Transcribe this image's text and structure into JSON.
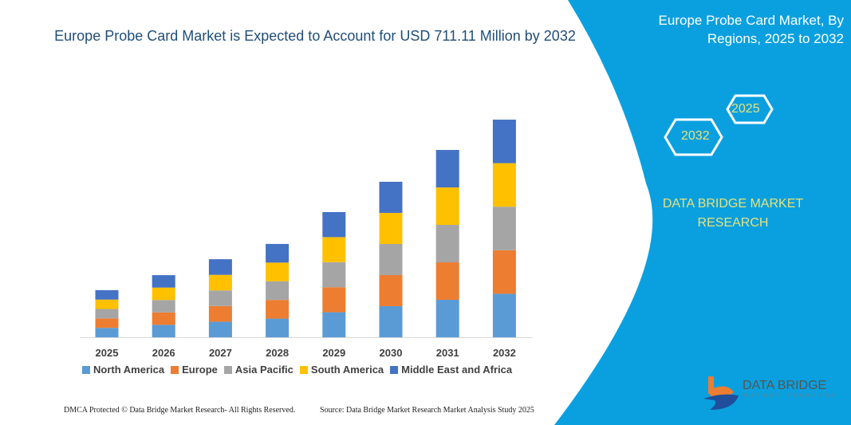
{
  "header": {
    "title": "Europe Probe Card Market is Expected to Account for USD 711.11 Million by 2032",
    "side_title": "Europe Probe Card Market, By Regions, 2025 to 2032",
    "hex_start": "2025",
    "hex_end": "2032",
    "brand": "DATA BRIDGE MARKET RESEARCH",
    "logo_text": "DATA BRIDGE",
    "logo_sub": "MARKET RESEARCH",
    "watermark": "DATA BRIDGE MARKET RESEARCH"
  },
  "footer": {
    "left": "DMCA Protected © Data Bridge Market Research-  All Rights Reserved.",
    "right": "Source: Data Bridge Market Research  Market Analysis Study 2025"
  },
  "colors": {
    "panel": "#0aa0df",
    "title": "#1f4e79",
    "brand_text": "#e8e27a"
  },
  "chart_data": {
    "type": "bar",
    "stacked": true,
    "title": "Europe Probe Card Market is Expected to Account for USD 711.11 Million by 2032",
    "categories": [
      "2025",
      "2026",
      "2027",
      "2028",
      "2029",
      "2030",
      "2031",
      "2032"
    ],
    "series": [
      {
        "name": "North America",
        "color": "#5b9bd5",
        "values": [
          30.8,
          40.6,
          51.0,
          61.0,
          81.8,
          101.6,
          122.4,
          142.2
        ]
      },
      {
        "name": "Europe",
        "color": "#ed7d31",
        "values": [
          30.8,
          40.6,
          51.0,
          61.0,
          81.8,
          101.6,
          122.4,
          142.2
        ]
      },
      {
        "name": "Asia Pacific",
        "color": "#a5a5a5",
        "values": [
          30.8,
          40.6,
          51.0,
          61.0,
          81.8,
          101.6,
          122.4,
          142.2
        ]
      },
      {
        "name": "South America",
        "color": "#ffc000",
        "values": [
          30.8,
          40.6,
          51.0,
          61.0,
          81.8,
          101.6,
          122.4,
          142.2
        ]
      },
      {
        "name": "Middle East and Africa",
        "color": "#4472c4",
        "values": [
          30.8,
          40.6,
          51.0,
          61.0,
          81.8,
          101.6,
          122.4,
          142.2
        ]
      }
    ],
    "ylim": [
      0,
      711.11
    ],
    "grid": false,
    "legend": "bottom",
    "xlabel": "",
    "ylabel": ""
  }
}
